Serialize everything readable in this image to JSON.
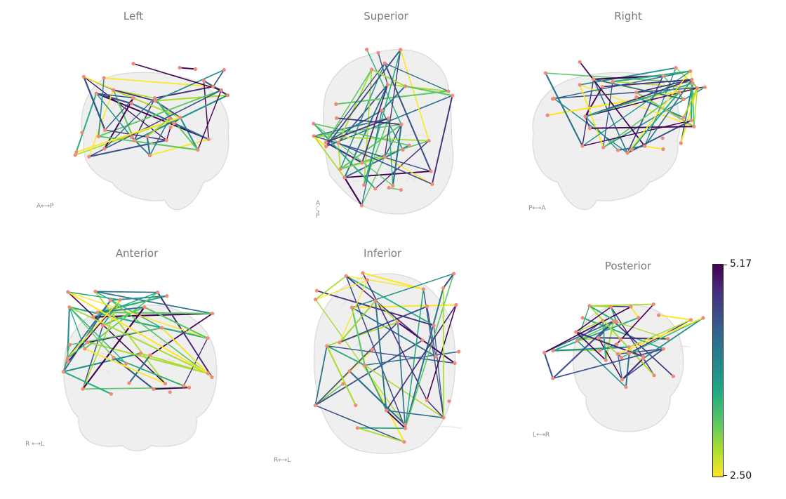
{
  "panels": [
    {
      "title": "Left",
      "orientation": "A⟷P",
      "shape": "side"
    },
    {
      "title": "Superior",
      "orientation": "A\n⤹\nP",
      "shape": "top"
    },
    {
      "title": "Right",
      "orientation": "P⟷A",
      "shape": "side-mirror"
    },
    {
      "title": "Anterior",
      "orientation": "R ⟷L",
      "shape": "front"
    },
    {
      "title": "Inferior",
      "orientation": "R⟷L",
      "shape": "bottom"
    },
    {
      "title": "Posterior",
      "orientation": "L⟷R",
      "shape": "front"
    }
  ],
  "colorbar": {
    "max_label": "5.17",
    "min_label": "2.50",
    "colormap": "viridis"
  },
  "colors": {
    "node": "#f08a7a",
    "brain": "#e2e2e2",
    "title": "#7a7a7a"
  }
}
